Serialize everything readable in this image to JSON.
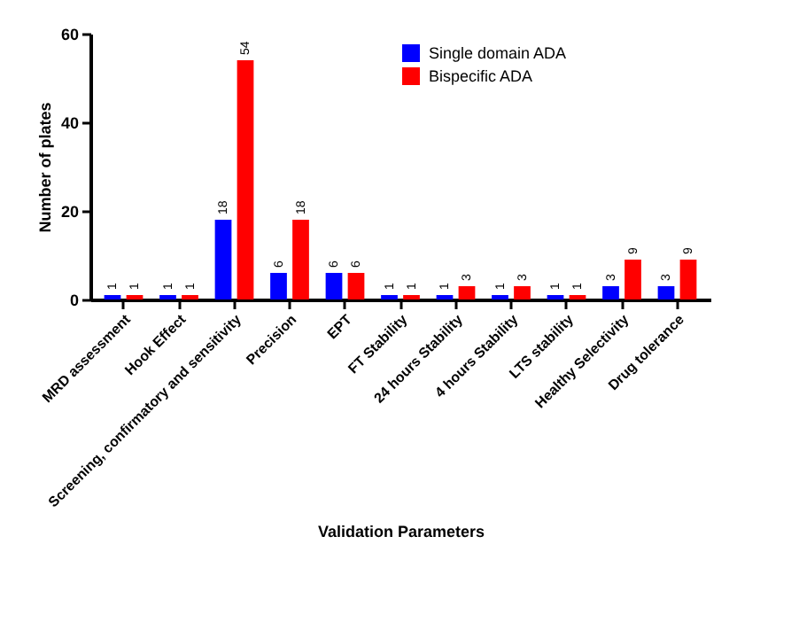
{
  "chart_data": {
    "type": "bar",
    "xlabel": "Validation Parameters",
    "ylabel": "Number of plates",
    "categories": [
      "MRD assessment",
      "Hook Effect",
      "Screening, confirmatory and sensitivity",
      "Precision",
      "EPT",
      "FT Stability",
      "24 hours Stability",
      "4 hours Stability",
      "LTS stability",
      "Healthy Selectivity",
      "Drug tolerance"
    ],
    "series": [
      {
        "name": "Single domain ADA",
        "color": "#0000ff",
        "values": [
          1,
          1,
          18,
          6,
          6,
          1,
          1,
          1,
          1,
          3,
          3
        ]
      },
      {
        "name": "Bispecific ADA",
        "color": "#ff0000",
        "values": [
          1,
          1,
          54,
          18,
          6,
          1,
          3,
          3,
          1,
          9,
          9
        ]
      }
    ],
    "ylim": [
      0,
      60
    ],
    "yticks": [
      0,
      20,
      40,
      60
    ],
    "grid": false,
    "legend": "top right",
    "data_labels": true
  }
}
